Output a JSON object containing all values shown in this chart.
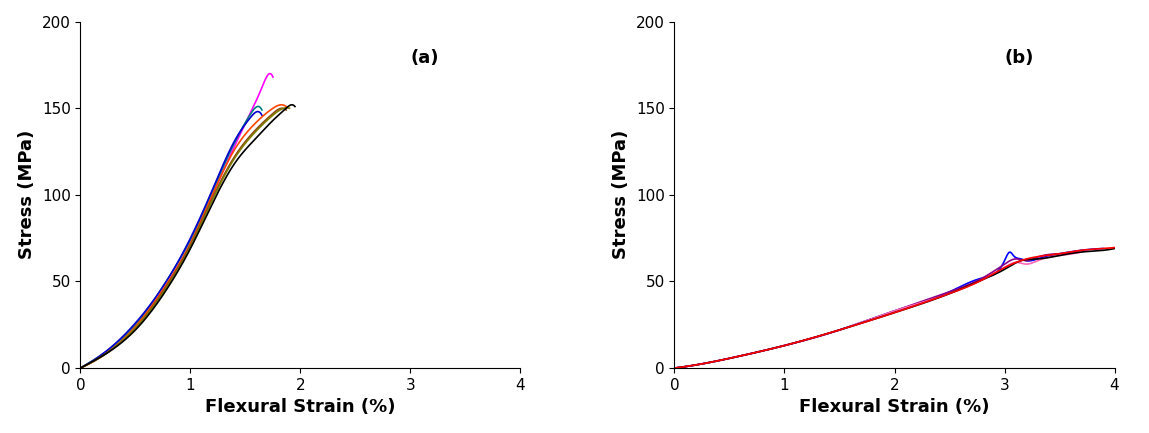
{
  "panel_a": {
    "label": "(a)",
    "xlabel": "Flexural Strain (%)",
    "ylabel": "Stress (MPa)",
    "xlim": [
      0,
      4
    ],
    "ylim": [
      0,
      200
    ],
    "xticks": [
      0,
      1,
      2,
      3,
      4
    ],
    "yticks": [
      0,
      50,
      100,
      150,
      200
    ],
    "curves": [
      {
        "color": "#FF00FF",
        "points": [
          [
            0,
            0
          ],
          [
            0.2,
            8
          ],
          [
            0.5,
            25
          ],
          [
            0.8,
            50
          ],
          [
            1.0,
            72
          ],
          [
            1.2,
            100
          ],
          [
            1.4,
            128
          ],
          [
            1.55,
            148
          ],
          [
            1.65,
            162
          ],
          [
            1.72,
            170
          ],
          [
            1.75,
            168
          ]
        ]
      },
      {
        "color": "#008080",
        "points": [
          [
            0,
            0
          ],
          [
            0.2,
            8
          ],
          [
            0.5,
            25
          ],
          [
            0.8,
            52
          ],
          [
            1.0,
            74
          ],
          [
            1.2,
            102
          ],
          [
            1.4,
            130
          ],
          [
            1.55,
            147
          ],
          [
            1.62,
            151
          ],
          [
            1.65,
            149
          ]
        ]
      },
      {
        "color": "#0000CD",
        "points": [
          [
            0,
            0
          ],
          [
            0.2,
            8
          ],
          [
            0.5,
            26
          ],
          [
            0.8,
            52
          ],
          [
            1.0,
            75
          ],
          [
            1.2,
            103
          ],
          [
            1.4,
            131
          ],
          [
            1.55,
            145
          ],
          [
            1.62,
            148
          ],
          [
            1.65,
            146
          ]
        ]
      },
      {
        "color": "#FF4500",
        "points": [
          [
            0,
            0
          ],
          [
            0.2,
            7
          ],
          [
            0.5,
            24
          ],
          [
            0.8,
            50
          ],
          [
            1.0,
            72
          ],
          [
            1.2,
            100
          ],
          [
            1.4,
            126
          ],
          [
            1.6,
            142
          ],
          [
            1.75,
            150
          ],
          [
            1.83,
            152
          ],
          [
            1.87,
            151
          ]
        ]
      },
      {
        "color": "#8B4513",
        "points": [
          [
            0,
            0
          ],
          [
            0.2,
            7
          ],
          [
            0.5,
            23
          ],
          [
            0.8,
            49
          ],
          [
            1.0,
            71
          ],
          [
            1.2,
            98
          ],
          [
            1.4,
            122
          ],
          [
            1.6,
            138
          ],
          [
            1.75,
            147
          ],
          [
            1.83,
            150
          ],
          [
            1.87,
            149
          ]
        ]
      },
      {
        "color": "#808000",
        "points": [
          [
            0,
            0
          ],
          [
            0.2,
            7
          ],
          [
            0.5,
            23
          ],
          [
            0.8,
            48
          ],
          [
            1.0,
            70
          ],
          [
            1.2,
            97
          ],
          [
            1.4,
            121
          ],
          [
            1.6,
            137
          ],
          [
            1.75,
            146
          ],
          [
            1.85,
            150
          ],
          [
            1.9,
            150
          ]
        ]
      },
      {
        "color": "#000000",
        "points": [
          [
            0,
            0
          ],
          [
            0.2,
            7
          ],
          [
            0.5,
            22
          ],
          [
            0.8,
            47
          ],
          [
            1.0,
            69
          ],
          [
            1.2,
            95
          ],
          [
            1.4,
            118
          ],
          [
            1.6,
            133
          ],
          [
            1.75,
            143
          ],
          [
            1.87,
            150
          ],
          [
            1.92,
            152
          ],
          [
            1.95,
            151
          ]
        ]
      }
    ]
  },
  "panel_b": {
    "label": "(b)",
    "xlabel": "Flexural Strain (%)",
    "ylabel": "Stress (MPa)",
    "xlim": [
      0,
      4
    ],
    "ylim": [
      0,
      200
    ],
    "xticks": [
      0,
      1,
      2,
      3,
      4
    ],
    "yticks": [
      0,
      50,
      100,
      150,
      200
    ],
    "curves": [
      {
        "color": "#0000FF",
        "points": [
          [
            0,
            0
          ],
          [
            0.3,
            3
          ],
          [
            0.6,
            7
          ],
          [
            1.0,
            13
          ],
          [
            1.5,
            22
          ],
          [
            2.0,
            33
          ],
          [
            2.5,
            44
          ],
          [
            2.8,
            52
          ],
          [
            3.0,
            62
          ],
          [
            3.05,
            67
          ],
          [
            3.08,
            65
          ],
          [
            3.15,
            63
          ],
          [
            3.2,
            62
          ],
          [
            3.3,
            63
          ],
          [
            3.5,
            66
          ],
          [
            3.7,
            68
          ],
          [
            3.9,
            69
          ]
        ]
      },
      {
        "color": "#8B008B",
        "points": [
          [
            0,
            0
          ],
          [
            0.3,
            3
          ],
          [
            0.6,
            7
          ],
          [
            1.0,
            13
          ],
          [
            1.5,
            22
          ],
          [
            2.0,
            33
          ],
          [
            2.5,
            44
          ],
          [
            2.8,
            52
          ],
          [
            3.0,
            60
          ],
          [
            3.1,
            63
          ],
          [
            3.2,
            62
          ],
          [
            3.3,
            64
          ],
          [
            3.5,
            66
          ],
          [
            3.7,
            68
          ]
        ]
      },
      {
        "color": "#FF69B4",
        "points": [
          [
            0,
            0
          ],
          [
            0.3,
            3
          ],
          [
            0.6,
            7
          ],
          [
            1.0,
            13
          ],
          [
            1.5,
            22
          ],
          [
            2.0,
            33
          ],
          [
            2.5,
            43
          ],
          [
            2.8,
            51
          ],
          [
            3.0,
            58
          ],
          [
            3.1,
            61
          ],
          [
            3.2,
            60
          ],
          [
            3.3,
            62
          ],
          [
            3.5,
            65
          ],
          [
            3.7,
            67
          ]
        ]
      },
      {
        "color": "#000000",
        "points": [
          [
            0,
            0
          ],
          [
            0.3,
            3
          ],
          [
            0.6,
            7
          ],
          [
            1.0,
            13
          ],
          [
            1.5,
            22
          ],
          [
            2.0,
            32
          ],
          [
            2.5,
            43
          ],
          [
            2.8,
            51
          ],
          [
            3.0,
            57
          ],
          [
            3.15,
            62
          ],
          [
            3.3,
            63
          ],
          [
            3.5,
            65
          ],
          [
            3.7,
            67
          ],
          [
            3.9,
            68
          ],
          [
            4.0,
            69
          ]
        ]
      },
      {
        "color": "#FF0000",
        "points": [
          [
            0,
            0
          ],
          [
            0.3,
            3
          ],
          [
            0.6,
            7
          ],
          [
            1.0,
            13
          ],
          [
            1.5,
            22
          ],
          [
            2.0,
            32
          ],
          [
            2.5,
            43
          ],
          [
            2.8,
            51
          ],
          [
            3.0,
            58
          ],
          [
            3.2,
            63
          ],
          [
            3.5,
            66
          ],
          [
            3.7,
            68
          ],
          [
            3.9,
            69
          ],
          [
            4.05,
            70
          ]
        ]
      }
    ]
  },
  "background_color": "#ffffff",
  "label_fontsize": 13,
  "tick_fontsize": 11,
  "annotation_fontsize": 13
}
